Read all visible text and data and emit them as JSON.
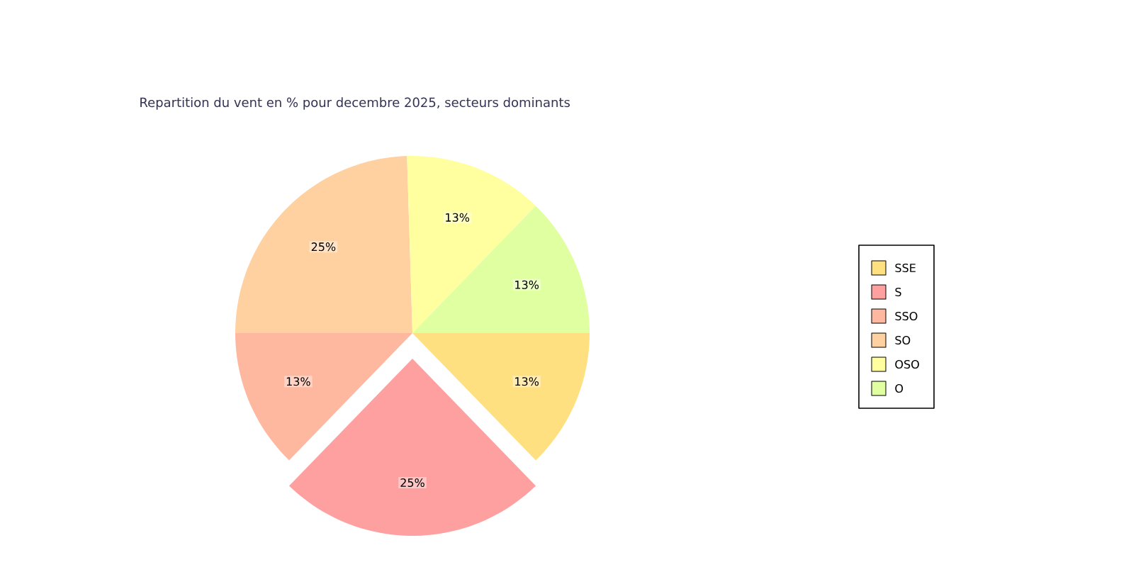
{
  "chart_data": {
    "type": "pie",
    "title": "Repartition du vent en % pour decembre 2025, secteurs dominants",
    "categories": [
      "SSE",
      "S",
      "SSO",
      "SO",
      "OSO",
      "O"
    ],
    "values": [
      13,
      25,
      13,
      25,
      13,
      13
    ],
    "value_labels": [
      "13%",
      "25%",
      "13%",
      "25%",
      "13%",
      "13%"
    ],
    "colors": [
      "#ffe080",
      "#ffa0a0",
      "#ffb8a0",
      "#ffd0a0",
      "#ffffa0",
      "#e0ffa0"
    ],
    "legend": "right"
  }
}
